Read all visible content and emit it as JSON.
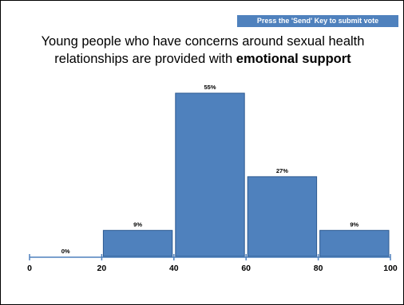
{
  "instruction": "Press the 'Send' Key to submit vote",
  "title": {
    "line1": "Young people who have concerns around sexual health",
    "line2_prefix": "relationships are provided with ",
    "line2_bold": "emotional support"
  },
  "chart_data": {
    "type": "bar",
    "title": "Young people who have concerns around sexual health relationships are provided with emotional support",
    "bins": [
      [
        0,
        20
      ],
      [
        20,
        40
      ],
      [
        40,
        60
      ],
      [
        60,
        80
      ],
      [
        80,
        100
      ]
    ],
    "values": [
      0,
      9,
      55,
      27,
      9
    ],
    "data_labels": [
      "0%",
      "9%",
      "55%",
      "27%",
      "9%"
    ],
    "x_ticks": [
      0,
      20,
      40,
      60,
      80,
      100
    ],
    "x_tick_labels": [
      "0",
      "20",
      "40",
      "60",
      "80",
      "100"
    ],
    "xlim": [
      0,
      100
    ],
    "ylim": [
      0,
      55
    ],
    "grid": false,
    "bar_color": "#4f81bd",
    "axis_color": "#4f81bd"
  }
}
